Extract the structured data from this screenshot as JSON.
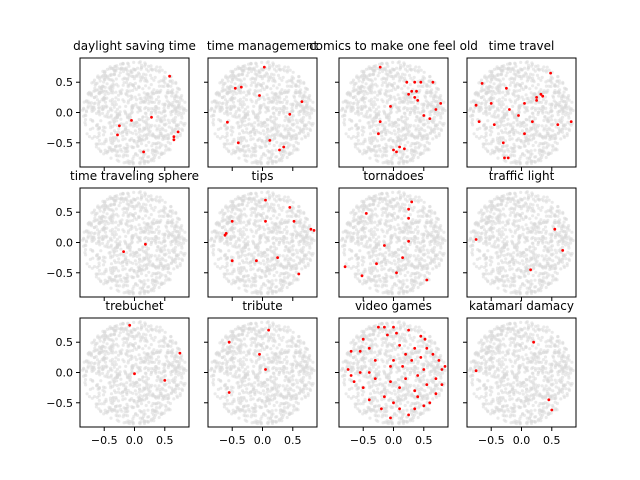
{
  "chart_data": {
    "type": "scatter",
    "layout": "3x4 small multiples, shared x and y axes",
    "xlim": [
      -0.9,
      0.9
    ],
    "ylim": [
      -0.9,
      0.9
    ],
    "xticks": [
      -0.5,
      0.0,
      0.5
    ],
    "xtick_labels": [
      "−0.5",
      "0.0",
      "0.5"
    ],
    "yticks": [
      -0.5,
      0.0,
      0.5
    ],
    "ytick_labels": [
      "−0.5",
      "0.0",
      "0.5"
    ],
    "background_points": "dense light-gray cloud filling a disc of radius ~0.85 centered at origin (identical in every panel)",
    "background_color": "#d9d9d9",
    "highlight_color": "#ff0000",
    "grid": false,
    "panels": [
      {
        "title": "daylight saving time",
        "points": [
          [
            0.58,
            0.6
          ],
          [
            0.28,
            -0.08
          ],
          [
            -0.05,
            -0.13
          ],
          [
            -0.25,
            -0.22
          ],
          [
            0.72,
            -0.32
          ],
          [
            0.65,
            -0.4
          ],
          [
            0.65,
            -0.45
          ],
          [
            -0.28,
            -0.37
          ],
          [
            0.15,
            -0.65
          ]
        ]
      },
      {
        "title": "time management",
        "points": [
          [
            0.03,
            0.75
          ],
          [
            -0.45,
            0.4
          ],
          [
            -0.35,
            0.42
          ],
          [
            -0.05,
            0.28
          ],
          [
            0.65,
            0.18
          ],
          [
            -0.58,
            -0.16
          ],
          [
            0.45,
            -0.03
          ],
          [
            -0.4,
            -0.5
          ],
          [
            0.12,
            -0.46
          ],
          [
            0.35,
            -0.57
          ],
          [
            0.28,
            -0.62
          ]
        ]
      },
      {
        "title": "comics to make one feel old",
        "points": [
          [
            -0.22,
            0.75
          ],
          [
            0.22,
            0.5
          ],
          [
            0.35,
            0.5
          ],
          [
            0.45,
            0.5
          ],
          [
            0.65,
            0.5
          ],
          [
            0.3,
            0.35
          ],
          [
            0.38,
            0.35
          ],
          [
            0.25,
            0.3
          ],
          [
            0.35,
            0.25
          ],
          [
            0.4,
            0.2
          ],
          [
            0.78,
            0.15
          ],
          [
            0.7,
            0.05
          ],
          [
            -0.05,
            0.1
          ],
          [
            0.5,
            -0.05
          ],
          [
            0.6,
            -0.1
          ],
          [
            -0.25,
            -0.35
          ],
          [
            -0.22,
            -0.15
          ],
          [
            0.1,
            -0.57
          ],
          [
            0.18,
            -0.6
          ],
          [
            0.0,
            -0.62
          ],
          [
            0.05,
            -0.65
          ]
        ]
      },
      {
        "title": "time travel",
        "points": [
          [
            0.48,
            0.65
          ],
          [
            -0.65,
            0.48
          ],
          [
            -0.25,
            0.4
          ],
          [
            0.32,
            0.3
          ],
          [
            0.35,
            0.27
          ],
          [
            0.25,
            0.25
          ],
          [
            0.25,
            0.2
          ],
          [
            -0.75,
            0.12
          ],
          [
            -0.5,
            0.15
          ],
          [
            0.05,
            0.15
          ],
          [
            -0.2,
            0.05
          ],
          [
            -0.05,
            -0.05
          ],
          [
            -0.7,
            -0.15
          ],
          [
            0.18,
            -0.15
          ],
          [
            0.6,
            -0.2
          ],
          [
            0.82,
            -0.15
          ],
          [
            -0.45,
            -0.2
          ],
          [
            0.05,
            -0.35
          ],
          [
            -0.3,
            -0.5
          ],
          [
            -0.22,
            -0.75
          ],
          [
            -0.28,
            -0.75
          ]
        ]
      },
      {
        "title": "time traveling sphere",
        "points": [
          [
            -0.18,
            -0.15
          ],
          [
            0.18,
            -0.03
          ]
        ]
      },
      {
        "title": "tips",
        "points": [
          [
            0.05,
            0.7
          ],
          [
            0.45,
            0.58
          ],
          [
            -0.5,
            0.35
          ],
          [
            0.05,
            0.35
          ],
          [
            0.52,
            0.35
          ],
          [
            -0.6,
            0.15
          ],
          [
            -0.62,
            0.12
          ],
          [
            0.8,
            0.22
          ],
          [
            0.85,
            0.2
          ],
          [
            -0.5,
            -0.3
          ],
          [
            -0.1,
            -0.3
          ],
          [
            0.25,
            -0.25
          ],
          [
            0.6,
            -0.52
          ]
        ]
      },
      {
        "title": "tornadoes",
        "points": [
          [
            0.3,
            0.67
          ],
          [
            0.25,
            0.55
          ],
          [
            -0.45,
            0.48
          ],
          [
            0.25,
            0.4
          ],
          [
            0.25,
            0.02
          ],
          [
            -0.15,
            -0.05
          ],
          [
            0.15,
            -0.25
          ],
          [
            -0.28,
            -0.35
          ],
          [
            -0.8,
            -0.4
          ],
          [
            0.05,
            -0.5
          ],
          [
            -0.52,
            -0.55
          ],
          [
            0.55,
            -0.62
          ]
        ]
      },
      {
        "title": "traffic light",
        "points": [
          [
            -0.75,
            0.05
          ],
          [
            0.55,
            0.22
          ],
          [
            0.68,
            -0.13
          ],
          [
            0.15,
            -0.45
          ]
        ]
      },
      {
        "title": "trebuchet",
        "points": [
          [
            -0.08,
            0.78
          ],
          [
            0.75,
            0.32
          ],
          [
            0.0,
            -0.02
          ],
          [
            0.5,
            -0.13
          ]
        ]
      },
      {
        "title": "tribute",
        "points": [
          [
            0.1,
            0.7
          ],
          [
            -0.55,
            0.5
          ],
          [
            -0.05,
            0.3
          ],
          [
            0.05,
            0.05
          ],
          [
            -0.55,
            -0.33
          ]
        ]
      },
      {
        "title": "video games",
        "points": [
          [
            -0.25,
            0.75
          ],
          [
            -0.15,
            0.75
          ],
          [
            0.0,
            0.75
          ],
          [
            0.25,
            0.7
          ],
          [
            -0.1,
            0.62
          ],
          [
            0.05,
            0.65
          ],
          [
            0.45,
            0.6
          ],
          [
            0.52,
            0.55
          ],
          [
            -0.5,
            0.55
          ],
          [
            -0.4,
            0.4
          ],
          [
            -0.7,
            0.35
          ],
          [
            -0.55,
            0.35
          ],
          [
            0.1,
            0.45
          ],
          [
            0.35,
            0.4
          ],
          [
            0.55,
            0.4
          ],
          [
            0.2,
            0.3
          ],
          [
            -0.3,
            0.2
          ],
          [
            0.0,
            0.2
          ],
          [
            0.3,
            0.2
          ],
          [
            0.45,
            0.25
          ],
          [
            0.65,
            0.3
          ],
          [
            0.75,
            0.2
          ],
          [
            -0.05,
            0.1
          ],
          [
            0.15,
            0.1
          ],
          [
            -0.75,
            0.05
          ],
          [
            -0.7,
            -0.05
          ],
          [
            -0.55,
            0.0
          ],
          [
            -0.4,
            0.0
          ],
          [
            0.5,
            0.05
          ],
          [
            0.8,
            0.05
          ],
          [
            0.85,
            0.1
          ],
          [
            0.4,
            -0.05
          ],
          [
            0.7,
            -0.1
          ],
          [
            -0.65,
            -0.15
          ],
          [
            -0.3,
            -0.1
          ],
          [
            -0.05,
            -0.15
          ],
          [
            0.2,
            -0.1
          ],
          [
            0.55,
            -0.2
          ],
          [
            0.8,
            -0.2
          ],
          [
            -0.5,
            -0.25
          ],
          [
            0.1,
            -0.25
          ],
          [
            0.35,
            -0.3
          ],
          [
            0.7,
            -0.35
          ],
          [
            -0.4,
            -0.45
          ],
          [
            -0.15,
            -0.4
          ],
          [
            0.0,
            -0.5
          ],
          [
            0.4,
            -0.4
          ],
          [
            0.6,
            -0.5
          ],
          [
            -0.2,
            -0.6
          ],
          [
            0.1,
            -0.6
          ],
          [
            0.25,
            -0.7
          ],
          [
            0.5,
            -0.55
          ],
          [
            -0.05,
            -0.75
          ],
          [
            0.35,
            -0.6
          ]
        ]
      },
      {
        "title": "katamari damacy",
        "points": [
          [
            0.2,
            0.5
          ],
          [
            -0.75,
            0.03
          ],
          [
            0.45,
            -0.45
          ],
          [
            0.5,
            -0.62
          ]
        ]
      }
    ]
  }
}
